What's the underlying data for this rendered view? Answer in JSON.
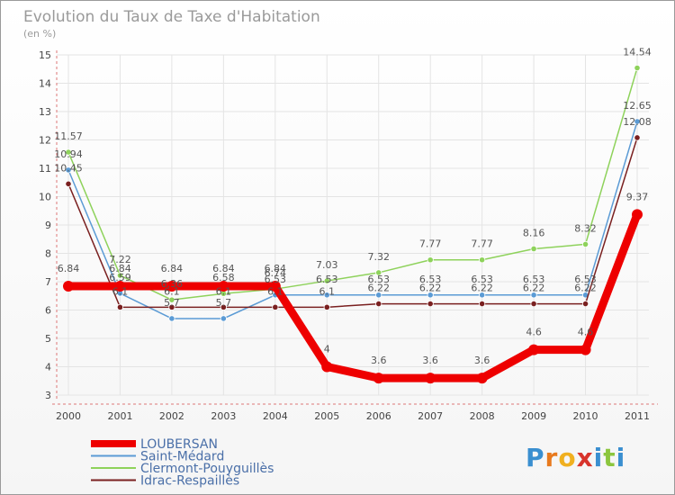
{
  "chart_data": {
    "type": "line",
    "title": "Evolution du Taux de Taxe d'Habitation",
    "ylabel": "(en %)",
    "xlabel": "",
    "categories": [
      "2000",
      "2001",
      "2002",
      "2003",
      "2004",
      "2005",
      "2006",
      "2007",
      "2008",
      "2009",
      "2010",
      "2011"
    ],
    "ylim": [
      3,
      15
    ],
    "yticks": [
      3,
      4,
      5,
      6,
      7,
      8,
      9,
      10,
      11,
      12,
      13,
      14,
      15
    ],
    "grid": true,
    "legend_position": "bottom-left",
    "series": [
      {
        "name": "LOUBERSAN",
        "color": "#ee0000",
        "values": [
          6.84,
          6.84,
          6.84,
          6.84,
          6.84,
          4,
          3.6,
          3.6,
          3.6,
          4.6,
          4.6,
          9.37
        ],
        "labels": [
          "6.84",
          "6.84",
          "6.84",
          "6.84",
          "6.84",
          "4",
          "3.6",
          "3.6",
          "3.6",
          "4.6",
          "4.6",
          "9.37"
        ]
      },
      {
        "name": "Saint-Médard",
        "color": "#5b9bd5",
        "values": [
          10.94,
          6.59,
          5.7,
          5.7,
          6.53,
          6.53,
          6.53,
          6.53,
          6.53,
          6.53,
          6.53,
          12.65
        ],
        "labels": [
          "10.94",
          "6.59",
          "5.7",
          "5.7",
          "6.53",
          "6.53",
          "6.53",
          "6.53",
          "6.53",
          "6.53",
          "6.53",
          "12.65"
        ]
      },
      {
        "name": "Clermont-Pouyguillès",
        "color": "#8ed25b",
        "values": [
          11.57,
          7.22,
          6.36,
          6.58,
          6.74,
          7.03,
          7.32,
          7.77,
          7.77,
          8.16,
          8.32,
          14.54
        ],
        "labels": [
          "11.57",
          "7.22",
          "6.36",
          "6.58",
          "6.74",
          "7.03",
          "7.32",
          "7.77",
          "7.77",
          "8.16",
          "8.32",
          "14.54"
        ]
      },
      {
        "name": "Idrac-Respaillès",
        "color": "#7a2020",
        "values": [
          10.45,
          6.1,
          6.1,
          6.1,
          6.1,
          6.1,
          6.22,
          6.22,
          6.22,
          6.22,
          6.22,
          12.08
        ],
        "labels": [
          "10.45",
          "6.1",
          "6.1",
          "6.1",
          "6.1",
          "6.1",
          "6.22",
          "6.22",
          "6.22",
          "6.22",
          "6.22",
          "12.08"
        ]
      }
    ]
  },
  "logo": {
    "text": "Proxiti",
    "letters": [
      {
        "ch": "P",
        "color": "#3a8fd0"
      },
      {
        "ch": "r",
        "color": "#e87a1e"
      },
      {
        "ch": "o",
        "color": "#f0b020"
      },
      {
        "ch": "x",
        "color": "#d8342c"
      },
      {
        "ch": "i",
        "color": "#3a8fd0"
      },
      {
        "ch": "t",
        "color": "#8cc63f"
      },
      {
        "ch": "i",
        "color": "#3a8fd0"
      }
    ]
  }
}
